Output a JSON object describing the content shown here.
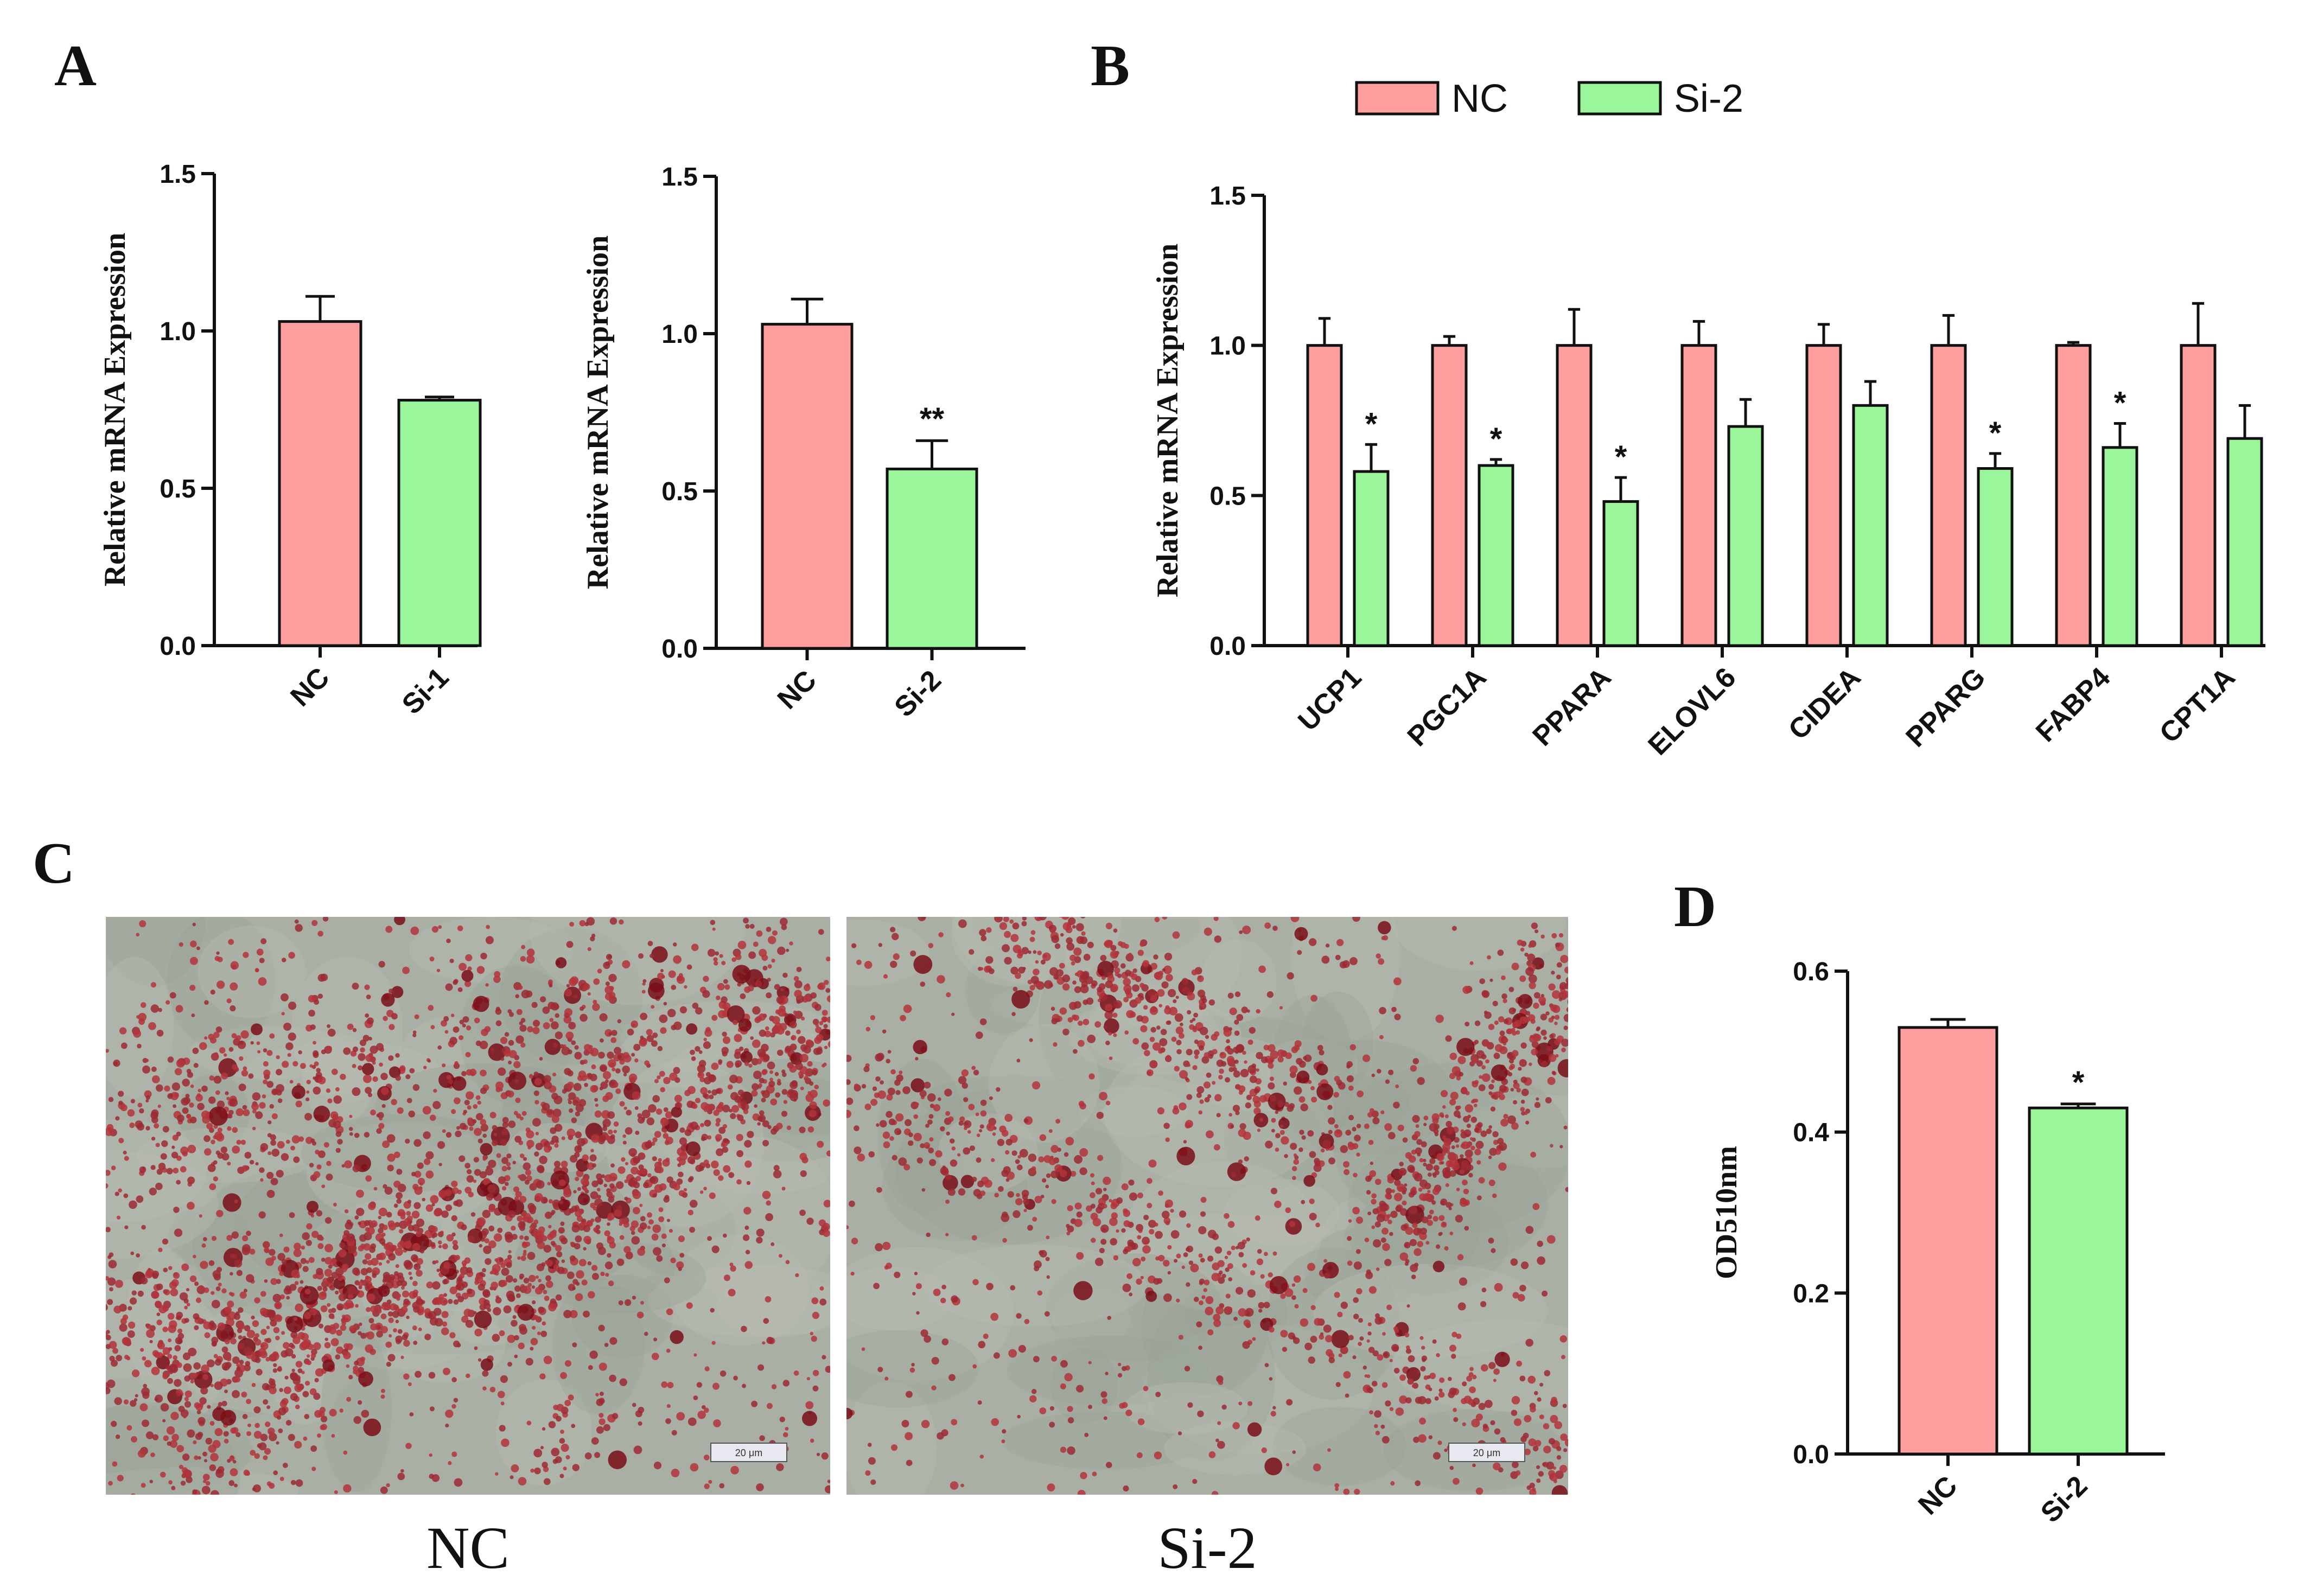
{
  "colors": {
    "nc": "#FF9E9E",
    "si": "#9BF59B",
    "axis": "#111111"
  },
  "panels": {
    "A": {
      "letter": "A"
    },
    "B": {
      "letter": "B"
    },
    "C": {
      "letter": "C",
      "captions": [
        "NC",
        "Si-2"
      ],
      "scale_bar_text": "20 μm"
    },
    "D": {
      "letter": "D"
    }
  },
  "chart_data": [
    {
      "id": "A1",
      "type": "bar",
      "ylabel": "Relative mRNA Expression",
      "ylim": [
        0,
        1.5
      ],
      "yticks": [
        "0.0",
        "0.5",
        "1.0",
        "1.5"
      ],
      "categories": [
        "NC",
        "Si-1"
      ],
      "values": [
        1.03,
        0.78
      ],
      "errors": [
        0.08,
        0.01
      ],
      "significance": [
        "",
        ""
      ]
    },
    {
      "id": "A2",
      "type": "bar",
      "ylabel": "Relative mRNA Expression",
      "ylim": [
        0,
        1.5
      ],
      "yticks": [
        "0.0",
        "0.5",
        "1.0",
        "1.5"
      ],
      "categories": [
        "NC",
        "Si-2"
      ],
      "values": [
        1.03,
        0.57
      ],
      "errors": [
        0.08,
        0.09
      ],
      "significance": [
        "",
        "**"
      ]
    },
    {
      "id": "B",
      "type": "bar",
      "ylabel": "Relative mRNA Expression",
      "ylim": [
        0,
        1.5
      ],
      "yticks": [
        "0.0",
        "0.5",
        "1.0",
        "1.5"
      ],
      "legend": [
        "NC",
        "Si-2"
      ],
      "categories": [
        "UCP1",
        "PGC1A",
        "PPARA",
        "ELOVL6",
        "CIDEA",
        "PPARG",
        "FABP4",
        "CPT1A"
      ],
      "series": [
        {
          "name": "NC",
          "values": [
            1.0,
            1.0,
            1.0,
            1.0,
            1.0,
            1.0,
            1.0,
            1.0
          ],
          "errors": [
            0.09,
            0.03,
            0.12,
            0.08,
            0.07,
            0.1,
            0.01,
            0.14
          ],
          "significance": [
            "",
            "",
            "",
            "",
            "",
            "",
            "",
            ""
          ]
        },
        {
          "name": "Si-2",
          "values": [
            0.58,
            0.6,
            0.48,
            0.73,
            0.8,
            0.59,
            0.66,
            0.69
          ],
          "errors": [
            0.09,
            0.02,
            0.08,
            0.09,
            0.08,
            0.05,
            0.08,
            0.11
          ],
          "significance": [
            "*",
            "*",
            "*",
            "",
            "",
            "*",
            "*",
            ""
          ]
        }
      ]
    },
    {
      "id": "D",
      "type": "bar",
      "ylabel": "OD510nm",
      "ylim": [
        0,
        0.6
      ],
      "yticks": [
        "0.0",
        "0.2",
        "0.4",
        "0.6"
      ],
      "categories": [
        "NC",
        "Si-2"
      ],
      "values": [
        0.53,
        0.43
      ],
      "errors": [
        0.01,
        0.005
      ],
      "significance": [
        "",
        "*"
      ]
    }
  ]
}
